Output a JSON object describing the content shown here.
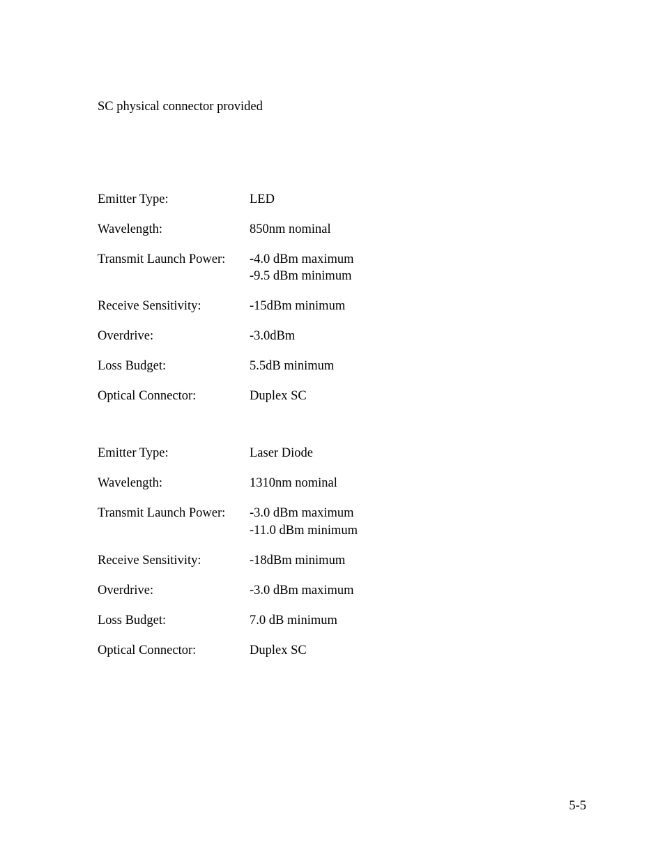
{
  "intro": "SC physical connector provided",
  "section1": {
    "row1": {
      "label": "Emitter Type:",
      "value": "LED"
    },
    "row2": {
      "label": "Wavelength:",
      "value": "850nm nominal"
    },
    "row3": {
      "label": "Transmit Launch Power:",
      "value1": "-4.0 dBm maximum",
      "value2": "-9.5 dBm minimum"
    },
    "row4": {
      "label": "Receive Sensitivity:",
      "value": "-15dBm minimum"
    },
    "row5": {
      "label": "Overdrive:",
      "value": " -3.0dBm"
    },
    "row6": {
      "label": "Loss Budget:",
      "value": "5.5dB minimum"
    },
    "row7": {
      "label": "Optical Connector:",
      "value": "Duplex SC"
    }
  },
  "section2": {
    "row1": {
      "label": "Emitter Type:",
      "value": "Laser Diode"
    },
    "row2": {
      "label": "Wavelength:",
      "value": "1310nm nominal"
    },
    "row3": {
      "label": "Transmit Launch Power:",
      "value1": "-3.0 dBm maximum",
      "value2": "-11.0 dBm minimum"
    },
    "row4": {
      "label": "Receive Sensitivity:",
      "value": "-18dBm minimum"
    },
    "row5": {
      "label": "Overdrive:",
      "value": "-3.0 dBm maximum"
    },
    "row6": {
      "label": "Loss Budget:",
      "value": "7.0 dB minimum"
    },
    "row7": {
      "label": "Optical Connector:",
      "value": "Duplex SC"
    }
  },
  "page_number": "5-5",
  "colors": {
    "background": "#ffffff",
    "text": "#000000"
  },
  "typography": {
    "font_family": "Times New Roman",
    "font_size_pt": 14
  }
}
